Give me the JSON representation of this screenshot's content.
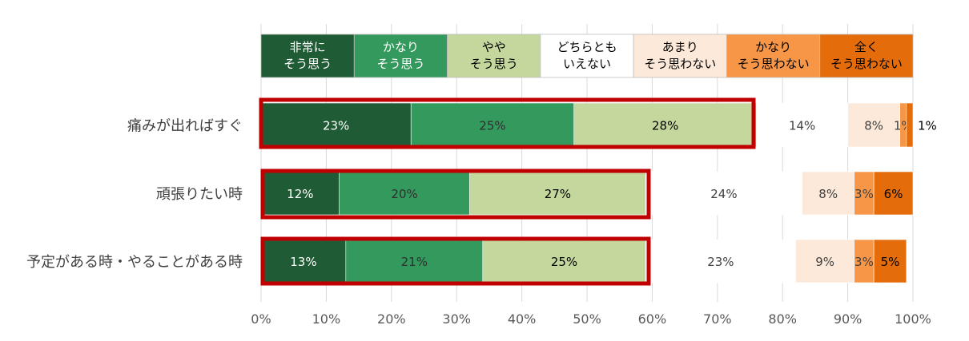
{
  "chart_data": {
    "type": "bar",
    "orientation": "horizontal",
    "stacked": true,
    "categories": [
      "痛みが出ればすぐ",
      "頑張りたい時",
      "予定がある時・やることがある時"
    ],
    "series": [
      {
        "name": "非常に\nそう思う",
        "values": [
          23,
          12,
          13
        ],
        "labels": [
          "23%",
          "12%",
          "13%"
        ],
        "color": "#1F5C36",
        "text_color": "#ffffff"
      },
      {
        "name": "かなり\nそう思う",
        "values": [
          25,
          20,
          21
        ],
        "labels": [
          "25%",
          "20%",
          "21%"
        ],
        "color": "#34995C",
        "text_color": "#2f2f2f"
      },
      {
        "name": "やや\nそう思う",
        "values": [
          28,
          27,
          25
        ],
        "labels": [
          "28%",
          "27%",
          "25%"
        ],
        "color": "#C4D89E",
        "text_color": "#000000"
      },
      {
        "name": "どちらとも\nいえない",
        "values": [
          14,
          24,
          23
        ],
        "labels": [
          "14%",
          "24%",
          "23%"
        ],
        "color": "#FFFFFF",
        "text_color": "#404040"
      },
      {
        "name": "あまり\nそう思わない",
        "values": [
          8,
          8,
          9
        ],
        "labels": [
          "8%",
          "8%",
          "9%"
        ],
        "color": "#FDE9D9",
        "text_color": "#404040"
      },
      {
        "name": "かなり\nそう思わない",
        "values": [
          1,
          3,
          3
        ],
        "labels": [
          "1%",
          "3%",
          "3%"
        ],
        "color": "#F79646",
        "text_color": "#404040"
      },
      {
        "name": "全く\nそう思わない",
        "values": [
          1,
          6,
          5
        ],
        "labels": [
          "1%",
          "6%",
          "5%"
        ],
        "color": "#E46C0A",
        "text_color": "#000000"
      }
    ],
    "xlim": [
      0,
      100
    ],
    "x_ticks": [
      "0%",
      "10%",
      "20%",
      "30%",
      "40%",
      "50%",
      "60%",
      "70%",
      "80%",
      "90%",
      "100%"
    ],
    "grid": "vertical",
    "legend": "top",
    "highlight": {
      "color": "#C00000",
      "covers": "非常に・かなり・やや そう思う"
    }
  }
}
